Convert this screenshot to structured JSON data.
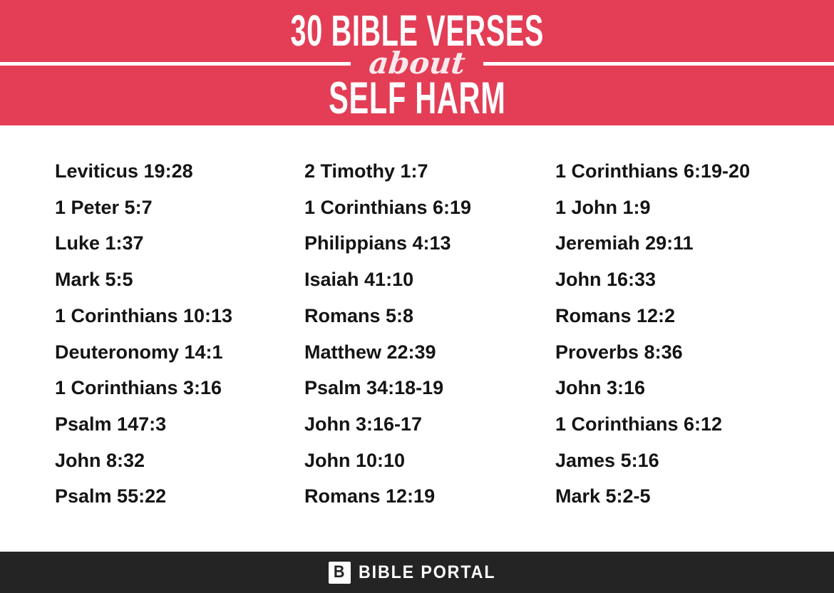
{
  "banner": {
    "bg_color": "#e33e56",
    "text_color": "#ffffff",
    "title_line1": "30 BIBLE VERSES",
    "title_script": "about",
    "title_line2": "SELF HARM"
  },
  "verses": {
    "text_color": "#141414",
    "columns": [
      {
        "items": [
          "Leviticus 19:28",
          "1 Peter 5:7",
          "Luke 1:37",
          "Mark 5:5",
          "1 Corinthians 10:13",
          "Deuteronomy 14:1",
          "1 Corinthians 3:16",
          "Psalm 147:3",
          "John 8:32",
          "Psalm 55:22"
        ]
      },
      {
        "items": [
          "2 Timothy 1:7",
          "1 Corinthians 6:19",
          "Philippians 4:13",
          "Isaiah 41:10",
          "Romans 5:8",
          "Matthew 22:39",
          "Psalm 34:18-19",
          "John 3:16-17",
          "John 10:10",
          "Romans 12:19"
        ]
      },
      {
        "items": [
          "1 Corinthians 6:19-20",
          "1 John 1:9",
          "Jeremiah 29:11",
          "John 16:33",
          "Romans 12:2",
          "Proverbs 8:36",
          "John 3:16",
          "1 Corinthians 6:12",
          "James 5:16",
          "Mark 5:2-5"
        ]
      }
    ]
  },
  "footer": {
    "bg_color": "#242424",
    "logo_letter": "B",
    "brand": "BIBLE PORTAL"
  }
}
